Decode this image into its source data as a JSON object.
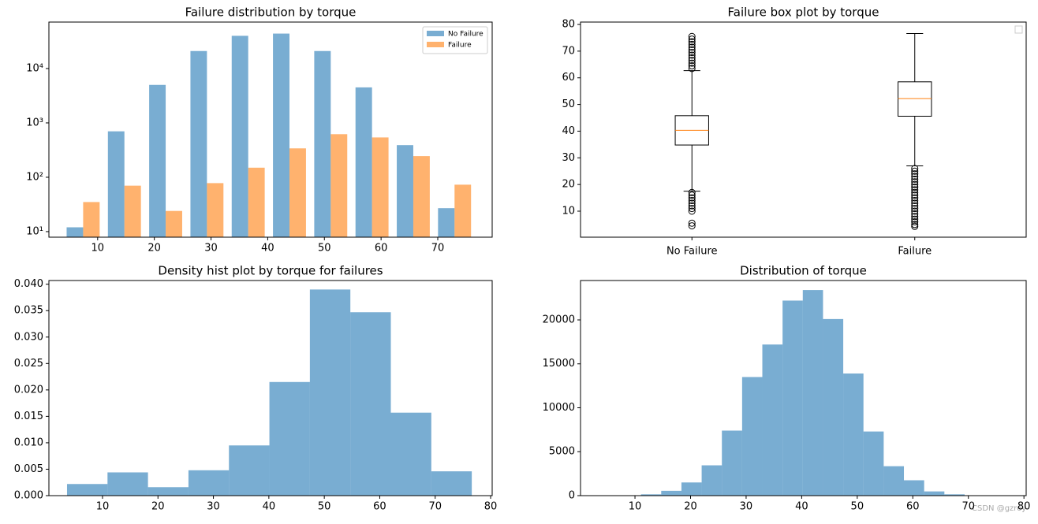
{
  "chart_data": [
    {
      "type": "histogram",
      "title": "Failure distribution by torque",
      "bins": [
        3.8,
        11.08,
        18.36,
        25.64,
        32.92,
        40.2,
        47.48,
        54.76,
        62.04,
        69.32,
        76.6
      ],
      "series": [
        {
          "name": "No Failure",
          "color": "#1f77b4",
          "values": [
            12,
            700,
            5000,
            21000,
            40000,
            44000,
            21000,
            4500,
            390,
            27
          ]
        },
        {
          "name": "Failure",
          "color": "#ff7f0e",
          "values": [
            35,
            70,
            24,
            78,
            150,
            340,
            620,
            540,
            245,
            73
          ]
        }
      ],
      "alpha": 0.6,
      "log_y": true,
      "legend": "upper right",
      "xlim": [
        1.4,
        79.6
      ],
      "xticks": [
        10,
        20,
        30,
        40,
        50,
        60,
        70
      ],
      "ylim": [
        7.9,
        71600
      ],
      "yticks": [
        {
          "value": 10,
          "label": "10¹"
        },
        {
          "value": 100,
          "label": "10²"
        },
        {
          "value": 1000,
          "label": "10³"
        },
        {
          "value": 10000,
          "label": "10⁴"
        }
      ]
    },
    {
      "type": "box",
      "title": "Failure box plot by torque",
      "categories": [
        "No Failure",
        "Failure"
      ],
      "stats": [
        {
          "whislo": 17.5,
          "q1": 34.8,
          "med": 40.3,
          "q3": 45.8,
          "whishi": 62.7,
          "fliers": [
            63.5,
            64.5,
            65.5,
            66.5,
            67.5,
            68.5,
            69.5,
            70.5,
            71.5,
            72.5,
            73.5,
            74.5,
            75.5,
            17,
            16,
            15,
            14,
            13,
            12,
            11,
            10,
            5.5,
            4.5
          ]
        },
        {
          "whislo": 27,
          "q1": 45.6,
          "med": 52.2,
          "q3": 58.5,
          "whishi": 76.6,
          "fliers": [
            26,
            25,
            24,
            23,
            22,
            21,
            20,
            19,
            18,
            17,
            16,
            15,
            14,
            13,
            12,
            11,
            10,
            9,
            8,
            7,
            6,
            5,
            4.3
          ]
        }
      ],
      "box_color": "#000000",
      "median_color": "#ff7f0e",
      "ylim": [
        0.25,
        80.9
      ],
      "yticks": [
        10,
        20,
        30,
        40,
        50,
        60,
        70,
        80
      ]
    },
    {
      "type": "histogram",
      "title": "Density hist plot by torque for failures",
      "bins": [
        3.6,
        10.9,
        18.2,
        25.5,
        32.8,
        40.1,
        47.4,
        54.7,
        62.0,
        69.3,
        76.6
      ],
      "values": [
        0.0022,
        0.0044,
        0.0016,
        0.0048,
        0.0095,
        0.0215,
        0.039,
        0.0347,
        0.0157,
        0.0046
      ],
      "color": "#1f77b4",
      "alpha": 0.6,
      "xlim": [
        0.33,
        80.28
      ],
      "xticks": [
        10,
        20,
        30,
        40,
        50,
        60,
        70,
        80
      ],
      "ylim": [
        0,
        0.0407
      ],
      "yticks": [
        {
          "value": 0,
          "label": "0.000"
        },
        {
          "value": 0.005,
          "label": "0.005"
        },
        {
          "value": 0.01,
          "label": "0.010"
        },
        {
          "value": 0.015,
          "label": "0.015"
        },
        {
          "value": 0.02,
          "label": "0.020"
        },
        {
          "value": 0.025,
          "label": "0.025"
        },
        {
          "value": 0.03,
          "label": "0.030"
        },
        {
          "value": 0.035,
          "label": "0.035"
        },
        {
          "value": 0.04,
          "label": "0.040"
        }
      ]
    },
    {
      "type": "histogram",
      "title": "Distribution of torque",
      "bins": [
        3.8,
        7.44,
        11.08,
        14.72,
        18.36,
        22.0,
        25.64,
        29.28,
        32.92,
        36.56,
        40.2,
        43.84,
        47.48,
        51.12,
        54.76,
        58.4,
        62.04,
        65.68,
        69.32,
        72.96,
        76.6
      ],
      "values": [
        5,
        20,
        150,
        550,
        1500,
        3450,
        7400,
        13500,
        17200,
        22200,
        23400,
        20100,
        13900,
        7300,
        3350,
        1750,
        480,
        150,
        40,
        10
      ],
      "color": "#1f77b4",
      "alpha": 0.6,
      "xlim": [
        0.2,
        80.4
      ],
      "xticks": [
        10,
        20,
        30,
        40,
        50,
        60,
        70,
        80
      ],
      "ylim": [
        0,
        24484
      ],
      "yticks": [
        0,
        5000,
        10000,
        15000,
        20000
      ]
    }
  ],
  "watermark": "CSDN @gzroy"
}
